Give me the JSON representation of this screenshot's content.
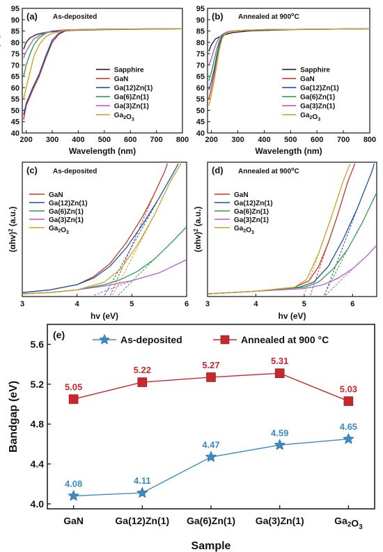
{
  "panels": [
    {
      "id": "a",
      "letter": "(a)",
      "annotation": "As-deposited",
      "type": "line",
      "xlabel": "Wavelength (nm)",
      "ylabel": "Transmittance (%)",
      "xlim": [
        185,
        800
      ],
      "ylim": [
        40,
        95
      ],
      "xticks": [
        200,
        300,
        400,
        500,
        600,
        700,
        800
      ],
      "yticks": [
        40,
        45,
        50,
        55,
        60,
        65,
        70,
        75,
        80,
        85,
        90,
        95
      ],
      "legend_position": "bottom-right",
      "series": [
        {
          "name": "Sapphire",
          "color": "#222222",
          "x": [
            190,
            200,
            215,
            240,
            280,
            350,
            500,
            800
          ],
          "y": [
            77,
            80,
            82,
            83.5,
            84.5,
            85.2,
            85.6,
            86
          ]
        },
        {
          "name": "GaN",
          "color": "#c0392b",
          "x": [
            190,
            200,
            225,
            250,
            275,
            300,
            325,
            350,
            400,
            500,
            800
          ],
          "y": [
            46,
            52,
            59,
            65,
            73,
            80,
            83.5,
            85,
            85.5,
            85.8,
            86
          ]
        },
        {
          "name": "Ga(12)Zn(1)",
          "color": "#1f4fa8",
          "x": [
            190,
            200,
            225,
            250,
            275,
            300,
            325,
            350,
            400,
            500,
            800
          ],
          "y": [
            48,
            53,
            60,
            66,
            74,
            81,
            84,
            85.2,
            85.6,
            85.8,
            86
          ]
        },
        {
          "name": "Ga(6)Zn(1)",
          "color": "#2a9d4a",
          "x": [
            190,
            200,
            215,
            230,
            250,
            275,
            300,
            350,
            500,
            800
          ],
          "y": [
            65,
            70,
            75,
            79,
            82,
            84,
            85,
            85.5,
            85.8,
            86
          ]
        },
        {
          "name": "Ga(3)Zn(1)",
          "color": "#b15ccf",
          "x": [
            190,
            200,
            215,
            230,
            250,
            275,
            300,
            350,
            500,
            800
          ],
          "y": [
            73,
            76,
            79,
            81.5,
            83,
            84.3,
            85,
            85.5,
            85.8,
            86
          ]
        },
        {
          "name": "Ga2O3",
          "color": "#c9a227",
          "x": [
            190,
            200,
            215,
            230,
            250,
            275,
            300,
            350,
            500,
            800
          ],
          "y": [
            55,
            60,
            67,
            74,
            79,
            82.5,
            84,
            85.3,
            85.7,
            86
          ]
        }
      ]
    },
    {
      "id": "b",
      "letter": "(b)",
      "annotation": "Annealed at 900",
      "annotation_sup": "o",
      "annotation_tail": "C",
      "type": "line",
      "xlabel": "Wavelength (nm)",
      "ylabel": "",
      "xlim": [
        185,
        800
      ],
      "ylim": [
        40,
        95
      ],
      "xticks": [
        200,
        300,
        400,
        500,
        600,
        700,
        800
      ],
      "yticks": [
        40,
        45,
        50,
        55,
        60,
        65,
        70,
        75,
        80,
        85,
        90,
        95
      ],
      "legend_position": "bottom-right",
      "series": [
        {
          "name": "Sapphire",
          "color": "#222222",
          "x": [
            190,
            200,
            215,
            240,
            280,
            350,
            500,
            800
          ],
          "y": [
            76,
            79,
            81.5,
            83,
            84.3,
            85.1,
            85.6,
            86
          ]
        },
        {
          "name": "GaN",
          "color": "#c0392b",
          "x": [
            190,
            200,
            210,
            220,
            230,
            240,
            250,
            270,
            300,
            400,
            800
          ],
          "y": [
            55,
            60,
            66,
            73,
            79,
            82.5,
            84,
            84.8,
            85.2,
            85.6,
            86
          ]
        },
        {
          "name": "Ga(12)Zn(1)",
          "color": "#1f4fa8",
          "x": [
            190,
            200,
            210,
            220,
            230,
            240,
            250,
            270,
            300,
            400,
            800
          ],
          "y": [
            59,
            63,
            68,
            74,
            79,
            82.5,
            84,
            84.8,
            85.2,
            85.6,
            86
          ]
        },
        {
          "name": "Ga(6)Zn(1)",
          "color": "#2a9d4a",
          "x": [
            190,
            200,
            210,
            220,
            230,
            240,
            260,
            300,
            400,
            800
          ],
          "y": [
            63,
            67,
            72,
            77,
            80.5,
            83,
            84.5,
            85.2,
            85.6,
            86
          ]
        },
        {
          "name": "Ga(3)Zn(1)",
          "color": "#b15ccf",
          "x": [
            190,
            200,
            210,
            220,
            230,
            240,
            260,
            300,
            400,
            800
          ],
          "y": [
            70,
            73,
            77,
            80,
            82,
            83.5,
            84.6,
            85.2,
            85.6,
            86
          ]
        },
        {
          "name": "Ga2O3",
          "color": "#c9a227",
          "x": [
            190,
            200,
            210,
            220,
            230,
            240,
            250,
            270,
            300,
            400,
            800
          ],
          "y": [
            52,
            57,
            63,
            70,
            77,
            81.5,
            83.5,
            84.6,
            85.2,
            85.6,
            86
          ]
        }
      ]
    },
    {
      "id": "c",
      "letter": "(c)",
      "annotation": "As-deposited",
      "type": "line",
      "xlabel": "hv (eV)",
      "ylabel_main": "(αhv)",
      "ylabel_sup": "2",
      "ylabel_tail": " (a.u.)",
      "xlim": [
        3,
        6
      ],
      "ylim": [
        0,
        1
      ],
      "xticks": [
        3,
        4,
        5,
        6
      ],
      "legend_position": "top-left",
      "series": [
        {
          "name": "GaN",
          "color": "#c0392b",
          "x": [
            3,
            3.5,
            4,
            4.3,
            4.6,
            4.9,
            5.2,
            5.4,
            5.6,
            5.65
          ],
          "y": [
            0.02,
            0.04,
            0.08,
            0.14,
            0.24,
            0.4,
            0.6,
            0.76,
            0.94,
            1.0
          ]
        },
        {
          "name": "Ga(12)Zn(1)",
          "color": "#1f4fa8",
          "x": [
            3,
            3.5,
            4,
            4.3,
            4.6,
            4.9,
            5.2,
            5.5,
            5.8,
            5.85
          ],
          "y": [
            0.02,
            0.04,
            0.08,
            0.13,
            0.22,
            0.36,
            0.54,
            0.74,
            0.96,
            1.0
          ]
        },
        {
          "name": "Ga(6)Zn(1)",
          "color": "#2a9d4a",
          "x": [
            3,
            3.5,
            4,
            4.5,
            4.8,
            5.1,
            5.4,
            5.7,
            6.0
          ],
          "y": [
            0.01,
            0.02,
            0.04,
            0.08,
            0.12,
            0.18,
            0.27,
            0.39,
            0.52
          ]
        },
        {
          "name": "Ga(3)Zn(1)",
          "color": "#b15ccf",
          "x": [
            3,
            3.5,
            4,
            4.5,
            5,
            5.5,
            6.0
          ],
          "y": [
            0.01,
            0.02,
            0.04,
            0.07,
            0.11,
            0.17,
            0.27
          ]
        },
        {
          "name": "Ga2O3",
          "color": "#c9a227",
          "x": [
            3,
            3.5,
            4,
            4.5,
            4.8,
            5.1,
            5.4,
            5.7,
            5.9
          ],
          "y": [
            0.01,
            0.02,
            0.04,
            0.1,
            0.2,
            0.38,
            0.6,
            0.86,
            1.0
          ]
        }
      ]
    },
    {
      "id": "d",
      "letter": "(d)",
      "annotation": "Annealed at 900",
      "annotation_sup": "o",
      "annotation_tail": "C",
      "type": "line",
      "xlabel": "hv (eV)",
      "ylabel_main": "(αhv)",
      "ylabel_sup": "2",
      "ylabel_tail": " (a.u.)",
      "xlim": [
        3,
        6.5
      ],
      "ylim": [
        0,
        1
      ],
      "xticks": [
        3,
        4,
        5,
        6
      ],
      "legend_position": "top-left",
      "series": [
        {
          "name": "GaN",
          "color": "#c0392b",
          "x": [
            3,
            4,
            4.8,
            5.1,
            5.3,
            5.5,
            5.7,
            5.9,
            6.05
          ],
          "y": [
            0.01,
            0.03,
            0.06,
            0.11,
            0.22,
            0.4,
            0.62,
            0.86,
            1.0
          ]
        },
        {
          "name": "Ga(12)Zn(1)",
          "color": "#1f4fa8",
          "x": [
            3,
            4,
            4.9,
            5.2,
            5.5,
            5.8,
            6.1,
            6.4,
            6.45
          ],
          "y": [
            0.01,
            0.03,
            0.06,
            0.1,
            0.22,
            0.42,
            0.66,
            0.94,
            1.0
          ]
        },
        {
          "name": "Ga(6)Zn(1)",
          "color": "#2a9d4a",
          "x": [
            3,
            4,
            5,
            5.3,
            5.6,
            5.9,
            6.2,
            6.5
          ],
          "y": [
            0.01,
            0.03,
            0.06,
            0.1,
            0.2,
            0.35,
            0.55,
            0.78
          ]
        },
        {
          "name": "Ga(3)Zn(1)",
          "color": "#b15ccf",
          "x": [
            3,
            4,
            5,
            5.4,
            5.7,
            6.0,
            6.3,
            6.5
          ],
          "y": [
            0.01,
            0.03,
            0.05,
            0.08,
            0.13,
            0.2,
            0.3,
            0.38
          ]
        },
        {
          "name": "Ga2O3",
          "color": "#c9a227",
          "x": [
            3,
            4,
            4.8,
            5.05,
            5.3,
            5.55,
            5.8,
            5.95
          ],
          "y": [
            0.01,
            0.03,
            0.06,
            0.12,
            0.32,
            0.58,
            0.86,
            1.0
          ]
        }
      ]
    },
    {
      "id": "e",
      "letter": "(e)",
      "type": "line",
      "xlabel": "Sample",
      "ylabel": "Bandgap (eV)",
      "ylim": [
        3.95,
        5.8
      ],
      "yticks": [
        4.0,
        4.4,
        4.8,
        5.2,
        5.6
      ],
      "categories": [
        "GaN",
        "Ga(12)Zn(1)",
        "Ga(6)Zn(1)",
        "Ga(3)Zn(1)",
        "Ga2O3"
      ],
      "legend_position": "top",
      "series": [
        {
          "name": "As-deposited",
          "color": "#3b8bc4",
          "marker": "star",
          "values": [
            4.08,
            4.11,
            4.47,
            4.59,
            4.65
          ],
          "labels": [
            "4.08",
            "4.11",
            "4.47",
            "4.59",
            "4.65"
          ]
        },
        {
          "name": "Annealed  at 900 °C",
          "color": "#c8282d",
          "marker": "square",
          "values": [
            5.05,
            5.22,
            5.27,
            5.31,
            5.03
          ],
          "labels": [
            "5.05",
            "5.22",
            "5.27",
            "5.31",
            "5.03"
          ]
        }
      ]
    }
  ],
  "chart_data": [
    {
      "type": "line",
      "panel": "a",
      "xlabel": "Wavelength (nm)",
      "ylabel": "Transmittance (%)",
      "ylim": [
        40,
        95
      ],
      "series_names": [
        "Sapphire",
        "GaN",
        "Ga(12)Zn(1)",
        "Ga(6)Zn(1)",
        "Ga(3)Zn(1)",
        "Ga2O3"
      ]
    },
    {
      "type": "line",
      "panel": "b",
      "xlabel": "Wavelength (nm)",
      "ylim": [
        40,
        95
      ],
      "series_names": [
        "Sapphire",
        "GaN",
        "Ga(12)Zn(1)",
        "Ga(6)Zn(1)",
        "Ga(3)Zn(1)",
        "Ga2O3"
      ]
    },
    {
      "type": "line",
      "panel": "c",
      "xlabel": "hv (eV)",
      "ylabel": "(αhv)2 (a.u.)",
      "xlim": [
        3,
        6
      ]
    },
    {
      "type": "line",
      "panel": "d",
      "xlabel": "hv (eV)",
      "ylabel": "(αhv)2 (a.u.)",
      "xlim": [
        3,
        6.5
      ]
    },
    {
      "type": "line",
      "panel": "e",
      "xlabel": "Sample",
      "ylabel": "Bandgap (eV)",
      "categories": [
        "GaN",
        "Ga(12)Zn(1)",
        "Ga(6)Zn(1)",
        "Ga(3)Zn(1)",
        "Ga2O3"
      ],
      "series": [
        {
          "name": "As-deposited",
          "values": [
            4.08,
            4.11,
            4.47,
            4.59,
            4.65
          ]
        },
        {
          "name": "Annealed  at 900 °C",
          "values": [
            5.05,
            5.22,
            5.27,
            5.31,
            5.03
          ]
        }
      ]
    }
  ]
}
